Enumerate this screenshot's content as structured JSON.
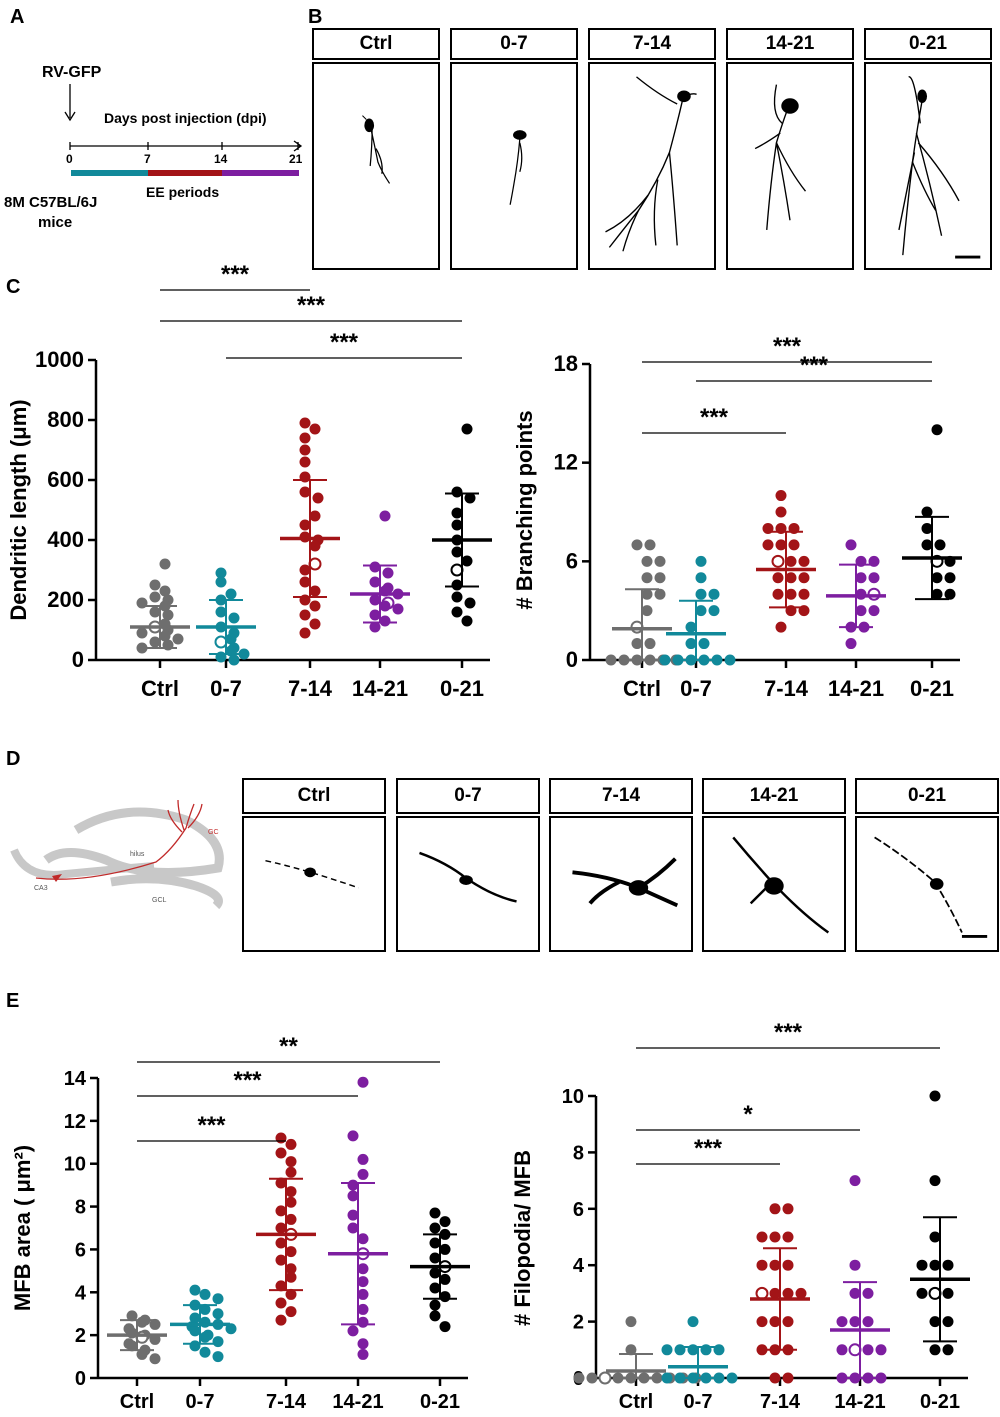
{
  "panel_letters": {
    "a": "A",
    "b": "B",
    "c": "C",
    "d": "D",
    "e": "E"
  },
  "timeline": {
    "injection": "RV-GFP",
    "axis_title": "Days post injection (dpi)",
    "ticks": [
      "0",
      "7",
      "14",
      "21"
    ],
    "periods_label": "EE periods",
    "mice_line1": "8M C57BL/6J",
    "mice_line2": "mice",
    "colors": [
      "#11899a",
      "#a31417",
      "#7d1ea0"
    ]
  },
  "conditions": [
    "Ctrl",
    "0-7",
    "7-14",
    "14-21",
    "0-21"
  ],
  "colors": {
    "Ctrl": "#6e6e6e",
    "0-7": "#11899a",
    "7-14": "#a31417",
    "14-21": "#7d1ea0",
    "0-21": "#000000"
  },
  "schematic_labels": {
    "hilus": "hilus",
    "gc": "GC",
    "ca3": "CA3",
    "gcl": "GCL"
  },
  "chart_data": [
    {
      "id": "dendritic",
      "type": "scatter",
      "title": "",
      "ylabel": "Dendritic length (μm)",
      "ylim": [
        0,
        1000
      ],
      "yticks": [
        "0",
        "200",
        "400",
        "600",
        "800",
        "1000"
      ],
      "categories": [
        "Ctrl",
        "0-7",
        "7-14",
        "14-21",
        "0-21"
      ],
      "series": [
        {
          "name": "Ctrl",
          "mean": 110,
          "sd": 70,
          "values": [
            320,
            250,
            230,
            210,
            200,
            190,
            180,
            160,
            150,
            120,
            110,
            100,
            90,
            80,
            70,
            60,
            50,
            40
          ]
        },
        {
          "name": "0-7",
          "mean": 110,
          "sd": 90,
          "values": [
            290,
            260,
            220,
            200,
            160,
            140,
            110,
            90,
            70,
            60,
            40,
            30,
            20,
            10,
            0
          ]
        },
        {
          "name": "7-14",
          "mean": 405,
          "sd": 195,
          "values": [
            790,
            770,
            740,
            700,
            660,
            610,
            560,
            540,
            480,
            450,
            410,
            400,
            380,
            320,
            300,
            260,
            230,
            200,
            180,
            150,
            120,
            90
          ]
        },
        {
          "name": "14-21",
          "mean": 220,
          "sd": 95,
          "values": [
            480,
            310,
            290,
            260,
            240,
            230,
            220,
            200,
            190,
            180,
            170,
            150,
            130,
            110
          ]
        },
        {
          "name": "0-21",
          "mean": 400,
          "sd": 155,
          "values": [
            770,
            560,
            540,
            490,
            450,
            400,
            360,
            330,
            300,
            250,
            210,
            190,
            160,
            130
          ]
        }
      ],
      "significance": [
        {
          "pair": [
            "Ctrl",
            "7-14"
          ],
          "label": "***"
        },
        {
          "pair": [
            "0-7",
            "0-21"
          ],
          "label": "***"
        },
        {
          "pair": [
            "Ctrl",
            "0-21"
          ],
          "label": "***"
        }
      ]
    },
    {
      "id": "branching",
      "type": "scatter",
      "title": "",
      "ylabel": "# Branching points",
      "ylim": [
        0,
        18
      ],
      "yticks": [
        "0",
        "6",
        "12",
        "18"
      ],
      "categories": [
        "Ctrl",
        "0-7",
        "7-14",
        "14-21",
        "0-21"
      ],
      "series": [
        {
          "name": "Ctrl",
          "mean": 1.9,
          "sd": 2.4,
          "values": [
            7,
            7,
            6,
            6,
            5,
            5,
            4,
            4,
            3,
            2,
            1,
            1,
            0,
            0,
            0,
            0,
            0,
            0
          ]
        },
        {
          "name": "0-7",
          "mean": 1.6,
          "sd": 2.0,
          "values": [
            6,
            5,
            4,
            4,
            3,
            3,
            2,
            1,
            1,
            0,
            0,
            0,
            0,
            0,
            0
          ]
        },
        {
          "name": "7-14",
          "mean": 5.5,
          "sd": 2.3,
          "values": [
            10,
            9,
            8,
            8,
            8,
            7,
            7,
            7,
            6,
            6,
            6,
            5,
            5,
            5,
            4,
            4,
            4,
            3,
            3,
            2
          ]
        },
        {
          "name": "14-21",
          "mean": 3.9,
          "sd": 1.9,
          "values": [
            7,
            6,
            6,
            5,
            5,
            4,
            4,
            3,
            3,
            2,
            2,
            1
          ]
        },
        {
          "name": "0-21",
          "mean": 6.2,
          "sd": 2.5,
          "values": [
            14,
            9,
            8,
            7,
            7,
            6,
            6,
            5,
            5,
            4,
            4
          ]
        }
      ],
      "significance": [
        {
          "pair": [
            "Ctrl",
            "7-14"
          ],
          "label": "***"
        },
        {
          "pair": [
            "0-7",
            "0-21"
          ],
          "label": "***"
        },
        {
          "pair": [
            "Ctrl",
            "0-21"
          ],
          "label": "***"
        }
      ]
    },
    {
      "id": "mfb",
      "type": "scatter",
      "title": "",
      "ylabel": "MFB area ( μm²)",
      "ylim": [
        0,
        14
      ],
      "yticks": [
        "0",
        "2",
        "4",
        "6",
        "8",
        "10",
        "12",
        "14"
      ],
      "categories": [
        "Ctrl",
        "0-7",
        "7-14",
        "14-21",
        "0-21"
      ],
      "series": [
        {
          "name": "Ctrl",
          "mean": 2.0,
          "sd": 0.7,
          "values": [
            2.9,
            2.7,
            2.6,
            2.5,
            2.3,
            2.1,
            2.0,
            1.9,
            1.8,
            1.6,
            1.5,
            1.3,
            1.1,
            0.9
          ]
        },
        {
          "name": "0-7",
          "mean": 2.5,
          "sd": 0.9,
          "values": [
            4.1,
            3.9,
            3.7,
            3.4,
            3.2,
            3.0,
            2.8,
            2.6,
            2.5,
            2.4,
            2.3,
            2.2,
            2.0,
            1.9,
            1.7,
            1.5,
            1.2,
            1.0
          ]
        },
        {
          "name": "7-14",
          "mean": 6.7,
          "sd": 2.6,
          "values": [
            11.2,
            10.9,
            10.5,
            10.1,
            9.6,
            9.1,
            8.7,
            8.2,
            7.8,
            7.4,
            7.0,
            6.7,
            6.3,
            5.9,
            5.5,
            5.1,
            4.7,
            4.3,
            3.9,
            3.5,
            3.1,
            2.7
          ]
        },
        {
          "name": "14-21",
          "mean": 5.8,
          "sd": 3.3,
          "values": [
            13.8,
            11.3,
            10.2,
            9.5,
            9.0,
            8.5,
            7.6,
            7.0,
            6.5,
            5.8,
            5.1,
            4.5,
            3.9,
            3.2,
            2.6,
            2.2,
            1.6,
            1.1
          ]
        },
        {
          "name": "0-21",
          "mean": 5.2,
          "sd": 1.5,
          "values": [
            7.7,
            7.3,
            7.0,
            6.7,
            6.3,
            6.0,
            5.6,
            5.2,
            4.9,
            4.6,
            4.2,
            3.8,
            3.4,
            2.9,
            2.4
          ]
        }
      ],
      "significance": [
        {
          "pair": [
            "Ctrl",
            "7-14"
          ],
          "label": "***"
        },
        {
          "pair": [
            "Ctrl",
            "14-21"
          ],
          "label": "***"
        },
        {
          "pair": [
            "Ctrl",
            "0-21"
          ],
          "label": "**"
        }
      ]
    },
    {
      "id": "filopodia",
      "type": "scatter",
      "title": "",
      "ylabel": "# Filopodia/ MFB",
      "ylim": [
        0,
        10
      ],
      "yticks": [
        "0",
        "2",
        "4",
        "6",
        "8",
        "10"
      ],
      "categories": [
        "Ctrl",
        "0-7",
        "7-14",
        "14-21",
        "0-21"
      ],
      "series": [
        {
          "name": "Ctrl",
          "mean": 0.25,
          "sd": 0.6,
          "values": [
            2,
            1,
            0,
            0,
            0,
            0,
            0,
            0,
            0,
            0,
            0,
            0
          ]
        },
        {
          "name": "0-7",
          "mean": 0.4,
          "sd": 0.7,
          "values": [
            2,
            1,
            1,
            1,
            1,
            1,
            0,
            0,
            0,
            0,
            0,
            0
          ]
        },
        {
          "name": "7-14",
          "mean": 2.8,
          "sd": 1.8,
          "values": [
            6,
            6,
            5,
            5,
            5,
            4,
            4,
            4,
            3,
            3,
            3,
            3,
            2,
            2,
            2,
            1,
            1,
            1,
            0,
            0
          ]
        },
        {
          "name": "14-21",
          "mean": 1.7,
          "sd": 1.7,
          "values": [
            7,
            4,
            3,
            3,
            2,
            2,
            2,
            1,
            1,
            1,
            1,
            0,
            0,
            0,
            0
          ]
        },
        {
          "name": "0-21",
          "mean": 3.5,
          "sd": 2.2,
          "values": [
            10,
            7,
            5,
            4,
            4,
            4,
            3,
            3,
            3,
            2,
            2,
            1,
            1
          ]
        }
      ],
      "significance": [
        {
          "pair": [
            "Ctrl",
            "7-14"
          ],
          "label": "***"
        },
        {
          "pair": [
            "Ctrl",
            "14-21"
          ],
          "label": "*"
        },
        {
          "pair": [
            "Ctrl",
            "0-21"
          ],
          "label": "***"
        }
      ]
    }
  ]
}
